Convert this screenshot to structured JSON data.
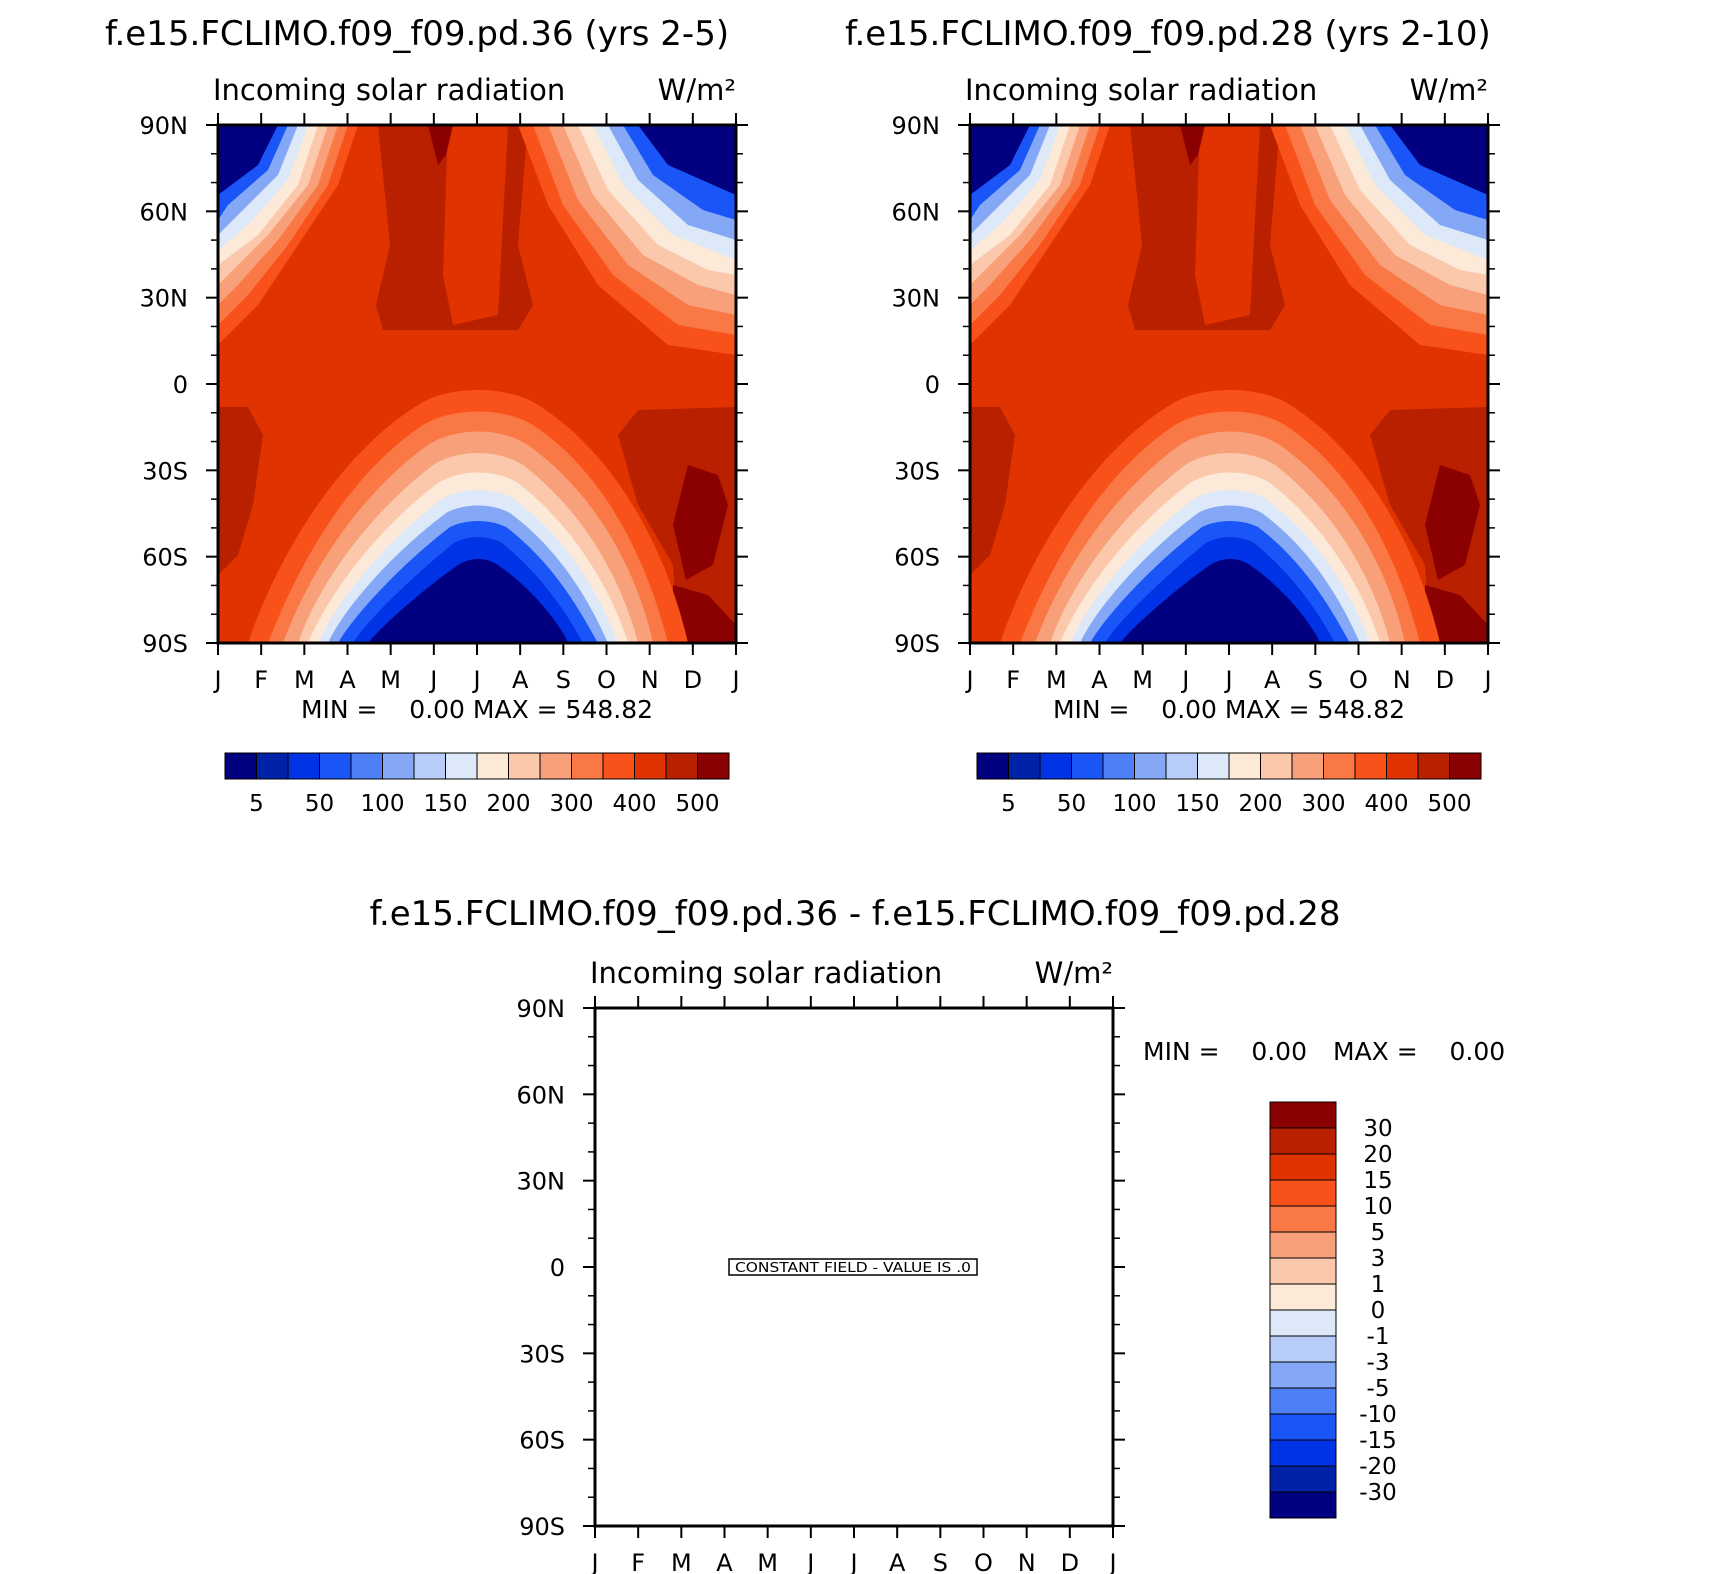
{
  "chart_data": [
    {
      "type": "heatmap",
      "title": "f.e15.FCLIMO.f09_f09.pd.36 (yrs 2-5)",
      "subtitle": "Incoming solar radiation",
      "units": "W/m²",
      "x_ticks": [
        "J",
        "F",
        "M",
        "A",
        "M",
        "J",
        "J",
        "A",
        "S",
        "O",
        "N",
        "D",
        "J"
      ],
      "y_ticks": [
        "90N",
        "60N",
        "30N",
        "0",
        "30S",
        "60S",
        "90S"
      ],
      "stats": "MIN =    0.00 MAX = 548.82",
      "colorbar_labels": [
        "5",
        "50",
        "100",
        "150",
        "200",
        "300",
        "400",
        "500"
      ],
      "colors": [
        "#000080",
        "#0022a8",
        "#0033e6",
        "#1a55f7",
        "#4d7ff7",
        "#85a8f6",
        "#b7ccf7",
        "#dde9f8",
        "#fde9d7",
        "#fbc8ac",
        "#f8a07a",
        "#f97846",
        "#f8521a",
        "#e03300",
        "#b82000",
        "#8b0000"
      ]
    },
    {
      "type": "heatmap",
      "title": "f.e15.FCLIMO.f09_f09.pd.28 (yrs 2-10)",
      "subtitle": "Incoming solar radiation",
      "units": "W/m²",
      "x_ticks": [
        "J",
        "F",
        "M",
        "A",
        "M",
        "J",
        "J",
        "A",
        "S",
        "O",
        "N",
        "D",
        "J"
      ],
      "y_ticks": [
        "90N",
        "60N",
        "30N",
        "0",
        "30S",
        "60S",
        "90S"
      ],
      "stats": "MIN =    0.00 MAX = 548.82",
      "colorbar_labels": [
        "5",
        "50",
        "100",
        "150",
        "200",
        "300",
        "400",
        "500"
      ],
      "colors": [
        "#000080",
        "#0022a8",
        "#0033e6",
        "#1a55f7",
        "#4d7ff7",
        "#85a8f6",
        "#b7ccf7",
        "#dde9f8",
        "#fde9d7",
        "#fbc8ac",
        "#f8a07a",
        "#f97846",
        "#f8521a",
        "#e03300",
        "#b82000",
        "#8b0000"
      ]
    },
    {
      "type": "heatmap",
      "title": "f.e15.FCLIMO.f09_f09.pd.36 - f.e15.FCLIMO.f09_f09.pd.28",
      "subtitle": "Incoming solar radiation",
      "units": "W/m²",
      "x_ticks": [
        "J",
        "F",
        "M",
        "A",
        "M",
        "J",
        "J",
        "A",
        "S",
        "O",
        "N",
        "D",
        "J"
      ],
      "y_ticks": [
        "90N",
        "60N",
        "30N",
        "0",
        "30S",
        "60S",
        "90S"
      ],
      "stats_min": "MIN =    0.00",
      "stats_max": "MAX =    0.00",
      "constant_field": "CONSTANT FIELD - VALUE IS .0",
      "colorbar_labels": [
        "30",
        "20",
        "15",
        "10",
        "5",
        "3",
        "1",
        "0",
        "-1",
        "-3",
        "-5",
        "-10",
        "-15",
        "-20",
        "-30"
      ],
      "colors": [
        "#8b0000",
        "#b82000",
        "#e03300",
        "#f8521a",
        "#f97846",
        "#f8a07a",
        "#fbc8ac",
        "#fde9d7",
        "#dde9f8",
        "#b7ccf7",
        "#85a8f6",
        "#4d7ff7",
        "#1a55f7",
        "#0033e6",
        "#0022a8",
        "#000080"
      ]
    }
  ]
}
